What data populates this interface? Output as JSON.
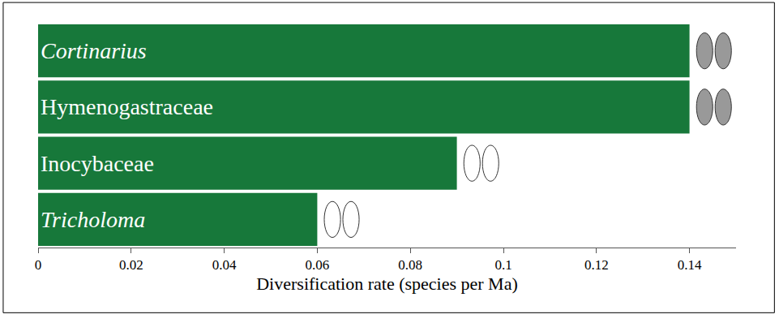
{
  "chart_data": {
    "type": "bar",
    "orientation": "horizontal",
    "categories": [
      "Cortinarius",
      "Hymenogastraceae",
      "Inocybaceae",
      "Tricholoma"
    ],
    "values": [
      0.14,
      0.14,
      0.09,
      0.06
    ],
    "color": "#17783a",
    "xlabel": "Diversification rate (species per Ma)",
    "xlim": [
      0,
      0.15
    ],
    "xticks": [
      0,
      0.02,
      0.04,
      0.06,
      0.08,
      0.1,
      0.12,
      0.14
    ],
    "grid": false,
    "tick_labels": "x"
  }
}
